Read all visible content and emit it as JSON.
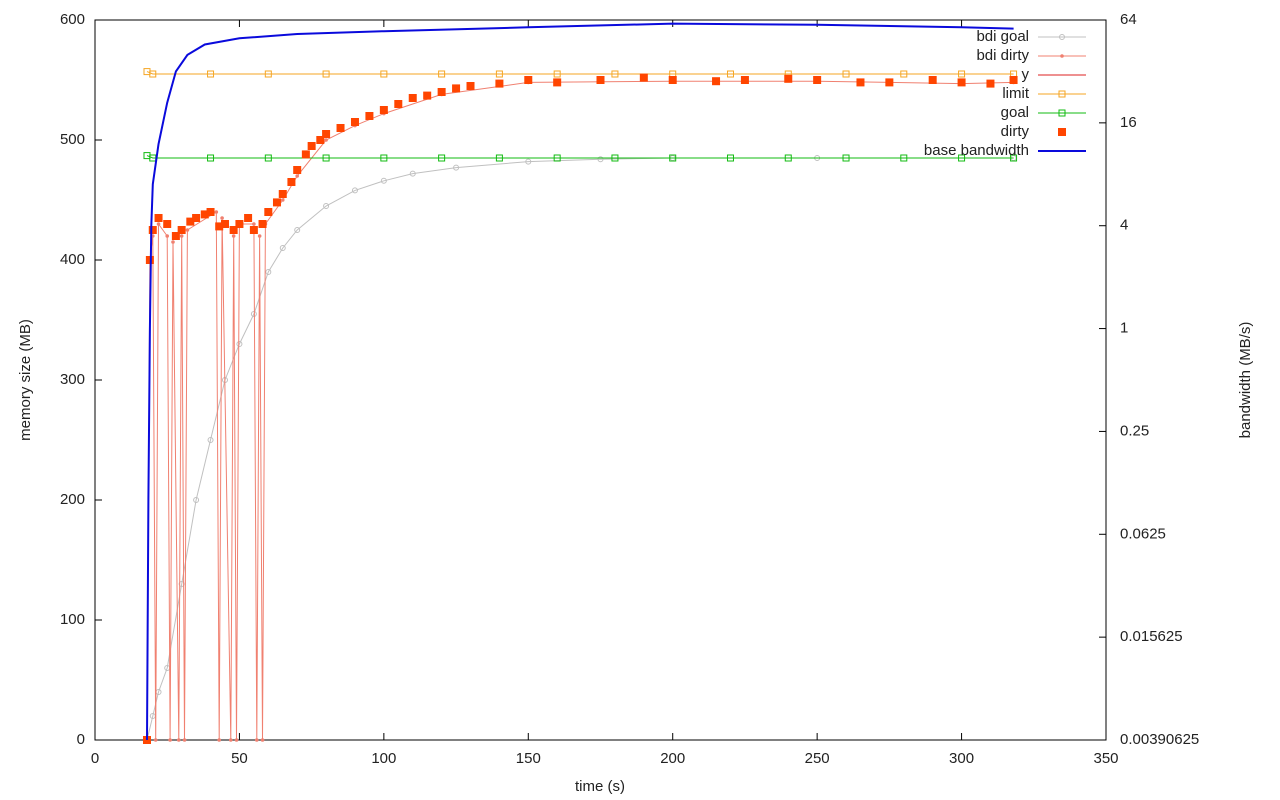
{
  "chart_data": {
    "type": "line",
    "xlabel": "time (s)",
    "ylabel": "memory size (MB)",
    "y2label": "bandwidth (MB/s)",
    "xlim": [
      0,
      350
    ],
    "xticks": [
      0,
      50,
      100,
      150,
      200,
      250,
      300,
      350
    ],
    "ylim": [
      0,
      600
    ],
    "yticks": [
      0,
      100,
      200,
      300,
      400,
      500,
      600
    ],
    "y2lim": [
      0.00390625,
      64
    ],
    "y2ticks": [
      0.00390625,
      0.015625,
      0.0625,
      0.25,
      1,
      4,
      16,
      64
    ],
    "y2scale": "log2",
    "legend": "top-right",
    "series": [
      {
        "name": "bdi goal",
        "color": "#c0c0c0",
        "style": "linespoints",
        "marker": "open-circle",
        "x": [
          18,
          20,
          22,
          25,
          30,
          35,
          40,
          45,
          50,
          55,
          60,
          65,
          70,
          80,
          90,
          100,
          110,
          125,
          150,
          175,
          200,
          250,
          318
        ],
        "values": [
          0,
          20,
          40,
          60,
          130,
          200,
          250,
          300,
          330,
          355,
          390,
          410,
          425,
          445,
          458,
          466,
          472,
          477,
          482,
          484,
          485,
          485,
          485
        ]
      },
      {
        "name": "bdi dirty",
        "color": "#f08070",
        "style": "linespoints",
        "marker": "dot",
        "x": [
          18,
          19,
          20,
          21,
          22,
          25,
          26,
          27,
          29,
          30,
          31,
          32,
          42,
          43,
          44,
          47,
          48,
          49,
          50,
          55,
          56,
          57,
          58,
          59,
          65,
          70,
          80,
          90,
          100,
          120,
          150,
          200,
          250,
          300,
          318
        ],
        "values": [
          0,
          400,
          420,
          0,
          430,
          420,
          0,
          415,
          0,
          420,
          0,
          425,
          440,
          0,
          435,
          0,
          420,
          0,
          430,
          430,
          0,
          420,
          0,
          430,
          450,
          470,
          500,
          512,
          522,
          538,
          548,
          549,
          549,
          547,
          548
        ]
      },
      {
        "name": "y",
        "color": "#dd2222",
        "style": "line",
        "x": [],
        "values": []
      },
      {
        "name": "limit",
        "color": "#f5a623",
        "style": "linespoints",
        "marker": "open-square",
        "x": [
          18,
          20,
          40,
          60,
          80,
          100,
          120,
          140,
          160,
          180,
          200,
          220,
          240,
          260,
          280,
          300,
          318
        ],
        "values": [
          557,
          555,
          555,
          555,
          555,
          555,
          555,
          555,
          555,
          555,
          555,
          555,
          555,
          555,
          555,
          555,
          555
        ]
      },
      {
        "name": "goal",
        "color": "#11bb11",
        "style": "linespoints",
        "marker": "open-square",
        "x": [
          18,
          20,
          40,
          60,
          80,
          100,
          120,
          140,
          160,
          180,
          200,
          220,
          240,
          260,
          280,
          300,
          318
        ],
        "values": [
          487,
          485,
          485,
          485,
          485,
          485,
          485,
          485,
          485,
          485,
          485,
          485,
          485,
          485,
          485,
          485,
          485
        ]
      },
      {
        "name": "dirty",
        "color": "#ff4500",
        "style": "points",
        "marker": "filled-square",
        "x": [
          18,
          19,
          20,
          22,
          25,
          28,
          30,
          33,
          35,
          38,
          40,
          43,
          45,
          48,
          50,
          53,
          55,
          58,
          60,
          63,
          65,
          68,
          70,
          73,
          75,
          78,
          80,
          85,
          90,
          95,
          100,
          105,
          110,
          115,
          120,
          125,
          130,
          140,
          150,
          160,
          175,
          190,
          200,
          215,
          225,
          240,
          250,
          265,
          275,
          290,
          300,
          310,
          318
        ],
        "values": [
          0,
          400,
          425,
          435,
          430,
          420,
          425,
          432,
          435,
          438,
          440,
          428,
          430,
          425,
          430,
          435,
          425,
          430,
          440,
          448,
          455,
          465,
          475,
          488,
          495,
          500,
          505,
          510,
          515,
          520,
          525,
          530,
          535,
          537,
          540,
          543,
          545,
          547,
          550,
          548,
          550,
          552,
          550,
          549,
          550,
          551,
          550,
          548,
          548,
          550,
          548,
          547,
          550
        ]
      },
      {
        "name": "base bandwidth",
        "color": "#0a0adc",
        "style": "line",
        "axis": "y2",
        "x": [
          18,
          18.5,
          19,
          19.5,
          20,
          22,
          25,
          28,
          32,
          38,
          50,
          70,
          100,
          150,
          200,
          250,
          300,
          318
        ],
        "values": [
          0.00390625,
          0.1,
          1,
          4,
          7,
          12,
          21,
          32,
          40,
          46,
          50,
          53,
          55,
          58,
          61,
          60,
          58,
          57
        ]
      }
    ]
  }
}
